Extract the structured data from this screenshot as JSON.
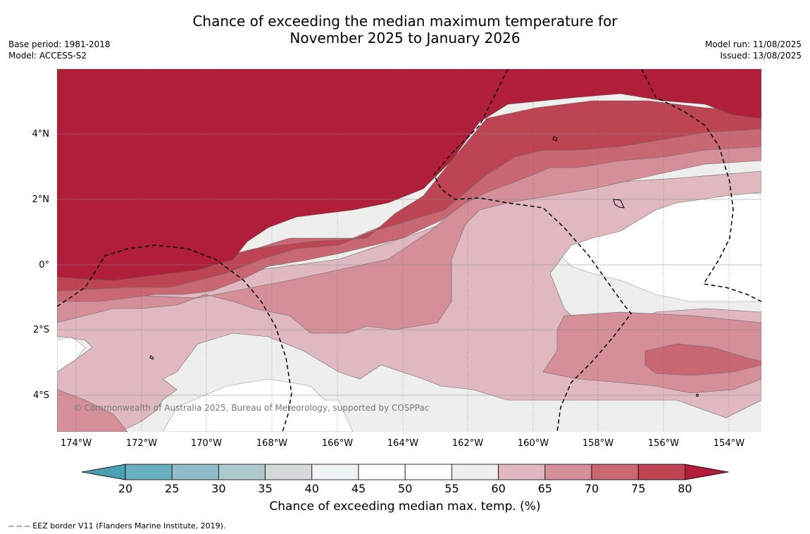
{
  "title_line1": "Chance of exceeding the median maximum temperature for",
  "title_line2": "November 2025 to January 2026",
  "meta_left": {
    "base_period": "Base period: 1981-2018",
    "model": "Model: ACCESS-S2"
  },
  "meta_right": {
    "model_run": "Model run: 11/08/2025",
    "issued": "Issued: 13/08/2025"
  },
  "lat_labels": [
    "4°N",
    "2°N",
    "0°",
    "2°S",
    "4°S"
  ],
  "lon_labels": [
    "174°W",
    "172°W",
    "170°W",
    "168°W",
    "166°W",
    "164°W",
    "162°W",
    "160°W",
    "158°W",
    "156°W",
    "154°W"
  ],
  "copyright": "© Commonwealth of Australia 2025, Bureau of Meteorology, supported by COSPPac",
  "colorbar": {
    "ticks": [
      "20",
      "25",
      "30",
      "35",
      "40",
      "45",
      "50",
      "55",
      "60",
      "65",
      "70",
      "75",
      "80"
    ],
    "label": "Chance of exceeding median max. temp. (%)",
    "colors": [
      "#4aa0b0",
      "#6aafbf",
      "#8fbcc6",
      "#aec9cd",
      "#d3dad9",
      "#eef3f3",
      "#ffffff",
      "#ffffff",
      "#eeeeec",
      "#e0b9c0",
      "#d58f99",
      "#c96873",
      "#bd4553",
      "#b11e3a"
    ]
  },
  "footnote": "--  --  -- EEZ border V11 (Flanders Marine Institute, 2019).",
  "map_colors": {
    "c80": "#b11e3a",
    "c75": "#bd4553",
    "c70": "#c96873",
    "c65": "#d58f99",
    "c60": "#e0b9c0",
    "c55": "#eeeeec",
    "c50": "#ffffff"
  }
}
